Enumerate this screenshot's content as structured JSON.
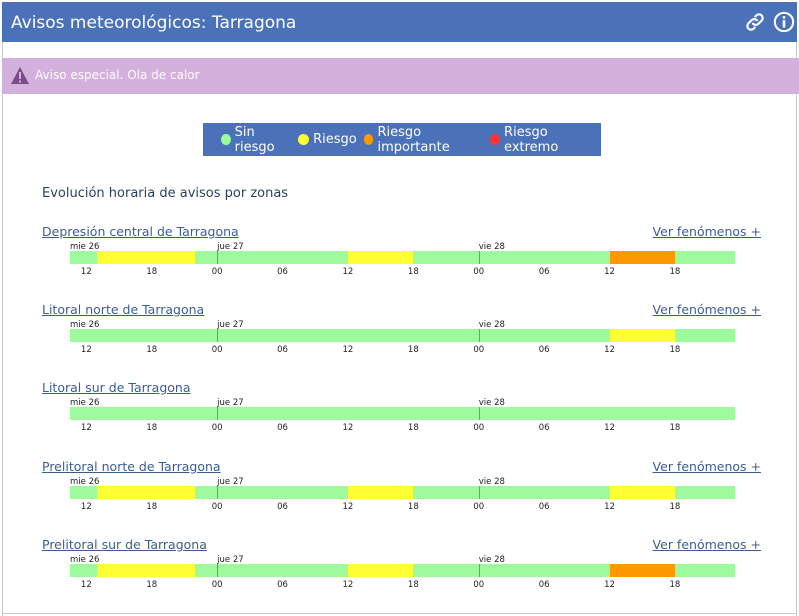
{
  "header": {
    "title": "Avisos meteorológicos: Tarragona"
  },
  "alert": {
    "text": "Aviso especial. Ola de calor"
  },
  "legend": [
    {
      "label": "Sin riesgo",
      "color": "#9dfb9d"
    },
    {
      "label": "Riesgo",
      "color": "#ffff33"
    },
    {
      "label": "Riesgo importante",
      "color": "#ff9900"
    },
    {
      "label": "Riesgo extremo",
      "color": "#ff3333"
    }
  ],
  "subtitle": "Evolución horaria de avisos por zonas",
  "ver_label": "Ver fenómenos +",
  "days": [
    "mie 26",
    "jue 27",
    "vie 28"
  ],
  "hours": [
    "12",
    "18",
    "00",
    "06",
    "12",
    "18",
    "00",
    "06",
    "12",
    "18"
  ],
  "zones": [
    {
      "name": "Depresión central de Tarragona",
      "show_ver": true,
      "segments": [
        {
          "level": "Riesgo",
          "start_hour": 13,
          "end_hour": 22
        },
        {
          "level": "Riesgo",
          "start_hour": 36,
          "end_hour": 42
        },
        {
          "level": "Riesgo importante",
          "start_hour": 60,
          "end_hour": 66
        }
      ]
    },
    {
      "name": "Litoral norte de Tarragona",
      "show_ver": true,
      "segments": [
        {
          "level": "Riesgo",
          "start_hour": 60,
          "end_hour": 66
        }
      ]
    },
    {
      "name": "Litoral sur de Tarragona",
      "show_ver": false,
      "segments": []
    },
    {
      "name": "Prelitoral norte de Tarragona",
      "show_ver": true,
      "segments": [
        {
          "level": "Riesgo",
          "start_hour": 13,
          "end_hour": 22
        },
        {
          "level": "Riesgo",
          "start_hour": 36,
          "end_hour": 42
        },
        {
          "level": "Riesgo",
          "start_hour": 60,
          "end_hour": 66
        }
      ]
    },
    {
      "name": "Prelitoral sur de Tarragona",
      "show_ver": true,
      "segments": [
        {
          "level": "Riesgo",
          "start_hour": 13,
          "end_hour": 22
        },
        {
          "level": "Riesgo",
          "start_hour": 36,
          "end_hour": 42
        },
        {
          "level": "Riesgo importante",
          "start_hour": 60,
          "end_hour": 66
        }
      ]
    }
  ]
}
